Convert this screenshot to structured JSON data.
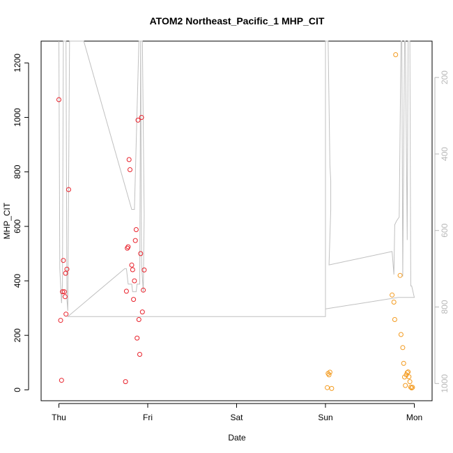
{
  "chart_data": {
    "type": "scatter",
    "title": "ATOM2 Northeast_Pacific_1 MHP_CIT",
    "xlabel": "Date",
    "ylabel": "MHP_CIT",
    "x_ticks": [
      {
        "label": "Thu",
        "day": 0
      },
      {
        "label": "Fri",
        "day": 1
      },
      {
        "label": "Sat",
        "day": 2
      },
      {
        "label": "Sun",
        "day": 3
      },
      {
        "label": "Mon",
        "day": 4
      }
    ],
    "y_ticks": [
      0,
      200,
      400,
      600,
      800,
      1000,
      1200
    ],
    "ylim": [
      -40,
      1280
    ],
    "right_axis": {
      "reversed": true,
      "ticks": [
        200,
        400,
        600,
        800,
        1000
      ],
      "ylim": [
        1045,
        105
      ],
      "color": "#b8b8b8"
    },
    "xlim_days": [
      -0.2,
      4.2
    ],
    "series": [
      {
        "color": "#e8202a",
        "points": [
          [
            0.0,
            1065
          ],
          [
            0.02,
            255
          ],
          [
            0.03,
            35
          ],
          [
            0.04,
            360
          ],
          [
            0.05,
            475
          ],
          [
            0.06,
            360
          ],
          [
            0.07,
            342
          ],
          [
            0.075,
            428
          ],
          [
            0.08,
            278
          ],
          [
            0.09,
            443
          ],
          [
            0.11,
            735
          ],
          [
            0.75,
            30
          ],
          [
            0.76,
            362
          ],
          [
            0.77,
            520
          ],
          [
            0.78,
            525
          ],
          [
            0.79,
            845
          ],
          [
            0.8,
            808
          ],
          [
            0.82,
            458
          ],
          [
            0.83,
            441
          ],
          [
            0.84,
            332
          ],
          [
            0.85,
            400
          ],
          [
            0.86,
            548
          ],
          [
            0.87,
            588
          ],
          [
            0.88,
            190
          ],
          [
            0.89,
            990
          ],
          [
            0.9,
            258
          ],
          [
            0.91,
            130
          ],
          [
            0.92,
            500
          ],
          [
            0.93,
            1000
          ],
          [
            0.94,
            286
          ],
          [
            0.95,
            366
          ],
          [
            0.96,
            440
          ]
        ]
      },
      {
        "color": "#f39a1e",
        "points": [
          [
            3.03,
            60
          ],
          [
            3.02,
            8
          ],
          [
            3.04,
            55
          ],
          [
            3.05,
            65
          ],
          [
            3.07,
            5
          ],
          [
            3.75,
            348
          ],
          [
            3.77,
            322
          ],
          [
            3.78,
            258
          ],
          [
            3.79,
            1230
          ],
          [
            3.84,
            420
          ],
          [
            3.85,
            203
          ],
          [
            3.87,
            155
          ],
          [
            3.88,
            97
          ],
          [
            3.89,
            47
          ],
          [
            3.9,
            16
          ],
          [
            3.91,
            55
          ],
          [
            3.92,
            63
          ],
          [
            3.93,
            66
          ],
          [
            3.94,
            48
          ],
          [
            3.95,
            30
          ],
          [
            3.96,
            10
          ],
          [
            3.97,
            7
          ],
          [
            3.98,
            9
          ]
        ]
      }
    ],
    "line_series": {
      "color": "#c0c0c0",
      "points": [
        [
          0.0,
          105
        ],
        [
          0.01,
          700
        ],
        [
          0.03,
          790
        ],
        [
          0.04,
          740
        ],
        [
          0.05,
          105
        ],
        [
          0.08,
          105
        ],
        [
          0.09,
          780
        ],
        [
          0.1,
          810
        ],
        [
          0.12,
          105
        ],
        [
          0.28,
          105
        ],
        [
          0.82,
          545
        ],
        [
          0.85,
          545
        ],
        [
          0.9,
          105
        ],
        [
          0.92,
          105
        ],
        [
          0.93,
          690
        ],
        [
          0.95,
          760
        ],
        [
          0.96,
          560
        ],
        [
          0.94,
          105
        ],
        [
          0.92,
          105
        ],
        [
          0.91,
          740
        ],
        [
          0.88,
          740
        ],
        [
          0.87,
          760
        ],
        [
          0.83,
          760
        ],
        [
          0.82,
          740
        ],
        [
          0.78,
          740
        ],
        [
          0.76,
          700
        ],
        [
          0.74,
          700
        ],
        [
          0.1,
          825
        ],
        [
          3.0,
          825
        ],
        [
          3.0,
          105
        ],
        [
          3.03,
          105
        ],
        [
          3.05,
          430
        ],
        [
          3.06,
          470
        ],
        [
          3.06,
          545
        ],
        [
          3.04,
          690
        ],
        [
          3.75,
          655
        ],
        [
          3.77,
          715
        ],
        [
          3.78,
          585
        ],
        [
          3.8,
          575
        ],
        [
          3.83,
          565
        ],
        [
          3.85,
          105
        ],
        [
          3.86,
          105
        ],
        [
          3.87,
          720
        ],
        [
          3.89,
          105
        ],
        [
          3.9,
          105
        ],
        [
          3.92,
          625
        ],
        [
          3.93,
          105
        ],
        [
          3.95,
          105
        ],
        [
          3.96,
          745
        ],
        [
          3.97,
          745
        ],
        [
          4.0,
          775
        ],
        [
          3.82,
          775
        ],
        [
          3.0,
          805
        ]
      ]
    }
  }
}
